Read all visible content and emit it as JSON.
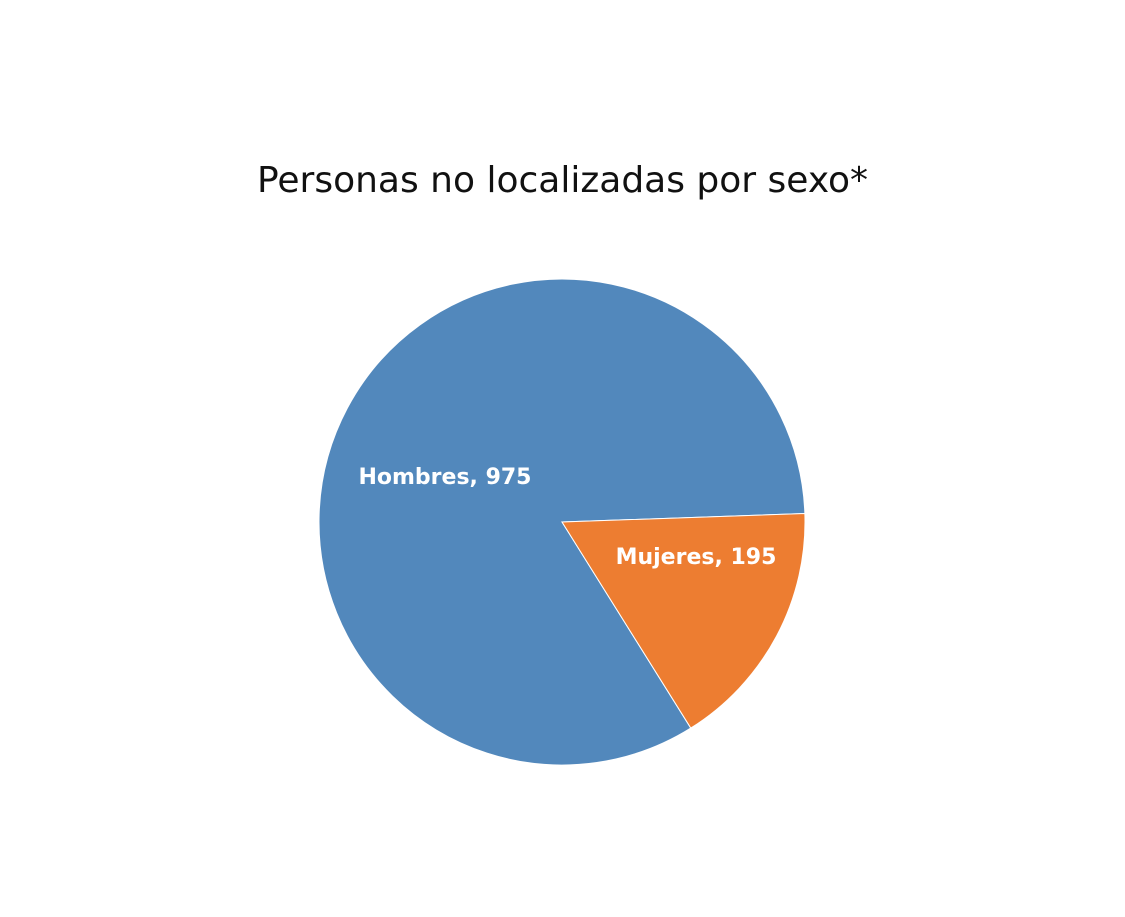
{
  "chart_data": {
    "type": "pie",
    "title": "Personas no localizadas por sexo*",
    "slices": [
      {
        "label": "Hombres",
        "value": 975,
        "color": "#5288BC",
        "data_label": "Hombres, 975"
      },
      {
        "label": "Mujeres",
        "value": 195,
        "color": "#ED7D31",
        "data_label": "Mujeres, 195"
      }
    ],
    "legend": "none"
  }
}
